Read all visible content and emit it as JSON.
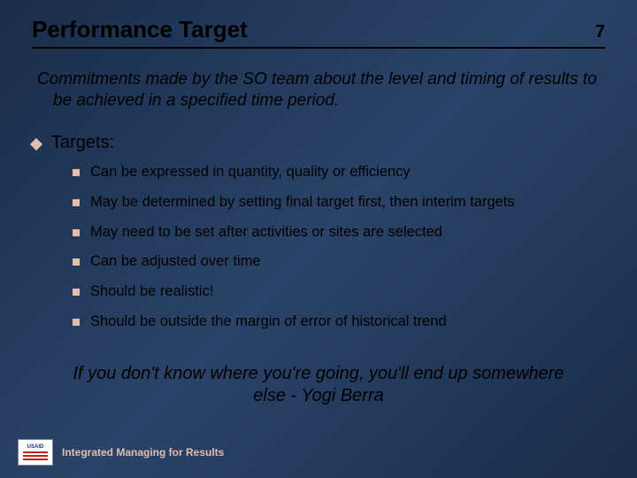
{
  "colors": {
    "background_gradient_start": "#1a2d4a",
    "background_gradient_mid": "#2a4368",
    "background_gradient_end": "#1a2d4a",
    "bullet_color": "#e0beb0",
    "text_color": "#000000",
    "footer_text_color": "#e0beb0",
    "rule_color": "#000000"
  },
  "header": {
    "title": "Performance Target",
    "page_number": "7"
  },
  "intro": "Commitments made by the SO team about the level and timing of results to be achieved in a specified time period.",
  "main": {
    "heading": "Targets:",
    "items": [
      "Can be expressed in quantity, quality or efficiency",
      "May be determined by setting final target first, then interim targets",
      "May need to be set after activities or sites are selected",
      "Can be adjusted over time",
      "Should be realistic!",
      "Should be outside the margin of error of historical trend"
    ]
  },
  "quote": "If you don't know where you're going, you'll end up somewhere else - Yogi Berra",
  "footer": {
    "logo_label": "USAID",
    "text": "Integrated Managing for Results"
  },
  "typography": {
    "title_fontsize": 26,
    "intro_fontsize": 19,
    "l1_fontsize": 20,
    "l2_fontsize": 16.5,
    "quote_fontsize": 20,
    "footer_fontsize": 12
  }
}
